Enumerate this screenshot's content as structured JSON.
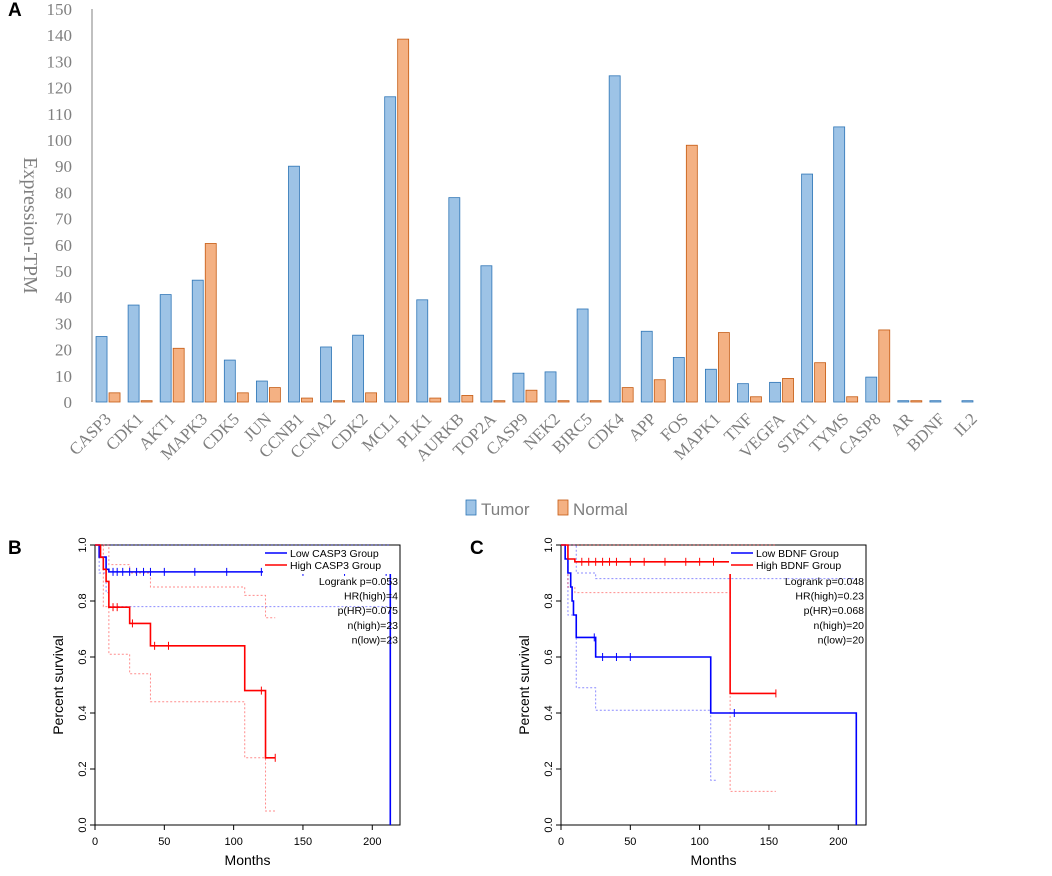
{
  "panels": {
    "a": "A",
    "b": "B",
    "c": "C"
  },
  "chart_data": [
    {
      "type": "bar",
      "panel": "A",
      "ylabel": "Expression-TPM",
      "ylim": [
        0,
        150
      ],
      "yticks": [
        0,
        10,
        20,
        30,
        40,
        50,
        60,
        70,
        80,
        90,
        100,
        110,
        120,
        130,
        140,
        150
      ],
      "categories": [
        "CASP3",
        "CDK1",
        "AKT1",
        "MAPK3",
        "CDK5",
        "JUN",
        "CCNB1",
        "CCNA2",
        "CDK2",
        "MCL1",
        "PLK1",
        "AURKB",
        "TOP2A",
        "CASP9",
        "NEK2",
        "BIRC5",
        "CDK4",
        "APP",
        "FOS",
        "MAPK1",
        "TNF",
        "VEGFA",
        "STAT1",
        "TYMS",
        "CASP8",
        "AR",
        "BDNF",
        "IL2"
      ],
      "series": [
        {
          "name": "Tumor",
          "color": "#9dc3e6",
          "edge": "#2e75b6",
          "values": [
            25,
            37,
            41,
            46.5,
            16,
            8,
            90,
            21,
            25.5,
            116.5,
            39,
            78,
            52,
            11,
            11.5,
            35.5,
            124.5,
            27,
            17,
            12.5,
            7,
            7.5,
            87,
            105,
            9.5,
            0.5,
            0.5,
            0.5
          ]
        },
        {
          "name": "Normal",
          "color": "#f4b183",
          "edge": "#c55a11",
          "values": [
            3.5,
            0.5,
            20.5,
            60.5,
            3.5,
            5.5,
            1.5,
            0.5,
            3.5,
            138.5,
            1.5,
            2.5,
            0.5,
            4.5,
            0.5,
            0.5,
            5.5,
            8.5,
            98,
            26.5,
            2,
            9,
            15,
            2,
            27.5,
            0.5,
            0,
            0
          ]
        }
      ]
    },
    {
      "type": "line",
      "panel": "B",
      "xlabel": "Months",
      "ylabel": "Percent survival",
      "xlim": [
        0,
        220
      ],
      "ylim": [
        0,
        1
      ],
      "xticks": [
        0,
        50,
        100,
        150,
        200
      ],
      "yticks": [
        "0.0",
        "0.2",
        "0.4",
        "0.6",
        "0.8",
        "1.0"
      ],
      "legend": [
        {
          "label": "Low CASP3 Group",
          "color": "#0000ff"
        },
        {
          "label": "High CASP3 Group",
          "color": "#ff0000"
        }
      ],
      "stats": [
        "Logrank p=0.053",
        "HR(high)=4",
        "p(HR)=0.075",
        "n(high)=23",
        "n(low)=23"
      ],
      "series": [
        {
          "name": "Low CASP3 Group",
          "color": "#0000ff",
          "steps": [
            [
              0,
              1.0
            ],
            [
              3,
              0.957
            ],
            [
              8,
              0.913
            ],
            [
              10,
              0.904
            ],
            [
              213,
              0.904
            ],
            [
              213,
              0.0
            ]
          ],
          "censored": [
            [
              13,
              0.904
            ],
            [
              16,
              0.904
            ],
            [
              20,
              0.904
            ],
            [
              25,
              0.904
            ],
            [
              30,
              0.904
            ],
            [
              35,
              0.904
            ],
            [
              40,
              0.904
            ],
            [
              50,
              0.904
            ],
            [
              72,
              0.904
            ],
            [
              95,
              0.904
            ],
            [
              120,
              0.904
            ],
            [
              150,
              0.904
            ],
            [
              180,
              0.904
            ],
            [
              210,
              0.904
            ]
          ],
          "ci_upper": [
            [
              0,
              1.0
            ],
            [
              10,
              1.0
            ],
            [
              213,
              1.0
            ]
          ],
          "ci_lower": [
            [
              0,
              1.0
            ],
            [
              3,
              0.9
            ],
            [
              8,
              0.83
            ],
            [
              10,
              0.78
            ],
            [
              213,
              0.78
            ]
          ]
        },
        {
          "name": "High CASP3 Group",
          "color": "#ff0000",
          "steps": [
            [
              0,
              1.0
            ],
            [
              4,
              0.956
            ],
            [
              6,
              0.913
            ],
            [
              8,
              0.87
            ],
            [
              10,
              0.778
            ],
            [
              20,
              0.778
            ],
            [
              25,
              0.72
            ],
            [
              40,
              0.64
            ],
            [
              108,
              0.64
            ],
            [
              108,
              0.48
            ],
            [
              123,
              0.48
            ],
            [
              123,
              0.24
            ],
            [
              130,
              0.24
            ]
          ],
          "censored": [
            [
              13,
              0.778
            ],
            [
              16,
              0.778
            ],
            [
              27,
              0.72
            ],
            [
              43,
              0.64
            ],
            [
              53,
              0.64
            ],
            [
              120,
              0.48
            ],
            [
              130,
              0.24
            ]
          ],
          "ci_upper": [
            [
              0,
              1.0
            ],
            [
              10,
              0.93
            ],
            [
              25,
              0.9
            ],
            [
              40,
              0.85
            ],
            [
              108,
              0.82
            ],
            [
              123,
              0.74
            ],
            [
              130,
              0.74
            ]
          ],
          "ci_lower": [
            [
              0,
              1.0
            ],
            [
              6,
              0.78
            ],
            [
              10,
              0.61
            ],
            [
              25,
              0.54
            ],
            [
              40,
              0.44
            ],
            [
              108,
              0.24
            ],
            [
              123,
              0.05
            ],
            [
              130,
              0.05
            ]
          ]
        }
      ]
    },
    {
      "type": "line",
      "panel": "C",
      "xlabel": "Months",
      "ylabel": "Percent survival",
      "xlim": [
        0,
        220
      ],
      "ylim": [
        0,
        1
      ],
      "xticks": [
        0,
        50,
        100,
        150,
        200
      ],
      "yticks": [
        "0.0",
        "0.2",
        "0.4",
        "0.6",
        "0.8",
        "1.0"
      ],
      "legend": [
        {
          "label": "Low BDNF Group",
          "color": "#0000ff"
        },
        {
          "label": "High BDNF Group",
          "color": "#ff0000"
        }
      ],
      "stats": [
        "Logrank p=0.048",
        "HR(high)=0.23",
        "p(HR)=0.068",
        "n(high)=20",
        "n(low)=20"
      ],
      "series": [
        {
          "name": "Low BDNF Group",
          "color": "#0000ff",
          "steps": [
            [
              0,
              1.0
            ],
            [
              3,
              0.95
            ],
            [
              5,
              0.9
            ],
            [
              7,
              0.85
            ],
            [
              8,
              0.8
            ],
            [
              9,
              0.75
            ],
            [
              11,
              0.67
            ],
            [
              22,
              0.67
            ],
            [
              25,
              0.6
            ],
            [
              108,
              0.6
            ],
            [
              108,
              0.4
            ],
            [
              213,
              0.4
            ],
            [
              213,
              0.0
            ]
          ],
          "censored": [
            [
              24,
              0.67
            ],
            [
              30,
              0.6
            ],
            [
              40,
              0.6
            ],
            [
              50,
              0.6
            ],
            [
              125,
              0.4
            ]
          ],
          "ci_upper": [
            [
              0,
              1.0
            ],
            [
              11,
              0.9
            ],
            [
              25,
              0.88
            ],
            [
              108,
              0.88
            ],
            [
              213,
              0.88
            ]
          ],
          "ci_lower": [
            [
              0,
              1.0
            ],
            [
              5,
              0.75
            ],
            [
              11,
              0.49
            ],
            [
              25,
              0.41
            ],
            [
              108,
              0.16
            ],
            [
              113,
              0.16
            ]
          ]
        },
        {
          "name": "High BDNF Group",
          "color": "#ff0000",
          "steps": [
            [
              0,
              1.0
            ],
            [
              5,
              0.95
            ],
            [
              10,
              0.94
            ],
            [
              122,
              0.94
            ],
            [
              122,
              0.47
            ],
            [
              155,
              0.47
            ]
          ],
          "censored": [
            [
              15,
              0.94
            ],
            [
              20,
              0.94
            ],
            [
              25,
              0.94
            ],
            [
              30,
              0.94
            ],
            [
              35,
              0.94
            ],
            [
              40,
              0.94
            ],
            [
              50,
              0.94
            ],
            [
              60,
              0.94
            ],
            [
              75,
              0.94
            ],
            [
              90,
              0.94
            ],
            [
              100,
              0.94
            ],
            [
              110,
              0.94
            ],
            [
              155,
              0.47
            ]
          ],
          "ci_upper": [
            [
              0,
              1.0
            ],
            [
              122,
              1.0
            ],
            [
              155,
              1.0
            ]
          ],
          "ci_lower": [
            [
              0,
              1.0
            ],
            [
              5,
              0.85
            ],
            [
              10,
              0.83
            ],
            [
              122,
              0.83
            ],
            [
              122,
              0.12
            ],
            [
              155,
              0.12
            ]
          ]
        }
      ]
    }
  ]
}
